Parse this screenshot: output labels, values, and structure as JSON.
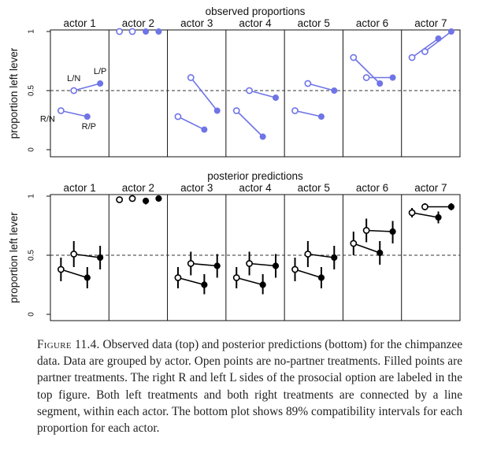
{
  "chart_data": [
    {
      "type": "scatter",
      "title": "observed proportions",
      "ylabel": "proportion left lever",
      "ylim": [
        0,
        1
      ],
      "yticks": [
        0,
        0.5,
        1
      ],
      "yticklabels": [
        "0",
        "0.5",
        "1"
      ],
      "reference_line": 0.5,
      "grid": false,
      "panels": [
        "actor 1",
        "actor 2",
        "actor 3",
        "actor 4",
        "actor 5",
        "actor 6",
        "actor 7"
      ],
      "treatments": [
        "R/N",
        "L/N",
        "R/P",
        "L/P"
      ],
      "series": [
        {
          "treatment": "R/N",
          "marker": "open",
          "values": [
            0.33,
            1.0,
            0.28,
            0.33,
            0.33,
            0.78,
            0.78
          ]
        },
        {
          "treatment": "L/N",
          "marker": "open",
          "values": [
            0.5,
            1.0,
            0.61,
            0.5,
            0.56,
            0.61,
            0.83
          ]
        },
        {
          "treatment": "R/P",
          "marker": "filled",
          "values": [
            0.28,
            1.0,
            0.17,
            0.11,
            0.28,
            0.56,
            0.94
          ]
        },
        {
          "treatment": "L/P",
          "marker": "filled",
          "values": [
            0.56,
            1.0,
            0.33,
            0.44,
            0.5,
            0.61,
            1.0
          ]
        }
      ],
      "annotations": [
        {
          "text": "R/N",
          "panel": "actor 1",
          "treatment": "R/N"
        },
        {
          "text": "L/N",
          "panel": "actor 1",
          "treatment": "L/N"
        },
        {
          "text": "R/P",
          "panel": "actor 1",
          "treatment": "R/P"
        },
        {
          "text": "L/P",
          "panel": "actor 1",
          "treatment": "L/P"
        }
      ],
      "color": "#6f74e6"
    },
    {
      "type": "scatter",
      "title": "posterior predictions",
      "ylabel": "proportion left lever",
      "ylim": [
        0,
        1
      ],
      "yticks": [
        0,
        0.5,
        1
      ],
      "yticklabels": [
        "0",
        "0.5",
        "1"
      ],
      "reference_line": 0.5,
      "grid": false,
      "panels": [
        "actor 1",
        "actor 2",
        "actor 3",
        "actor 4",
        "actor 5",
        "actor 6",
        "actor 7"
      ],
      "treatments": [
        "R/N",
        "L/N",
        "R/P",
        "L/P"
      ],
      "interval": "89%",
      "series": [
        {
          "treatment": "R/N",
          "marker": "open",
          "values": [
            0.38,
            0.97,
            0.31,
            0.31,
            0.38,
            0.6,
            0.86
          ],
          "lower": [
            0.28,
            0.95,
            0.22,
            0.22,
            0.28,
            0.5,
            0.82
          ],
          "upper": [
            0.48,
            0.99,
            0.4,
            0.4,
            0.48,
            0.7,
            0.9
          ]
        },
        {
          "treatment": "L/N",
          "marker": "open",
          "values": [
            0.51,
            0.98,
            0.43,
            0.43,
            0.51,
            0.71,
            0.91
          ],
          "lower": [
            0.4,
            0.97,
            0.33,
            0.33,
            0.4,
            0.61,
            0.88
          ],
          "upper": [
            0.62,
            0.99,
            0.53,
            0.53,
            0.62,
            0.81,
            0.94
          ]
        },
        {
          "treatment": "R/P",
          "marker": "filled",
          "values": [
            0.31,
            0.96,
            0.25,
            0.25,
            0.31,
            0.52,
            0.82
          ],
          "lower": [
            0.22,
            0.93,
            0.17,
            0.17,
            0.22,
            0.42,
            0.77
          ],
          "upper": [
            0.4,
            0.98,
            0.34,
            0.34,
            0.4,
            0.62,
            0.87
          ]
        },
        {
          "treatment": "L/P",
          "marker": "filled",
          "values": [
            0.48,
            0.98,
            0.41,
            0.41,
            0.48,
            0.7,
            0.91
          ],
          "lower": [
            0.38,
            0.97,
            0.31,
            0.31,
            0.38,
            0.6,
            0.88
          ],
          "upper": [
            0.58,
            0.99,
            0.51,
            0.51,
            0.58,
            0.79,
            0.94
          ]
        }
      ],
      "color": "#000000"
    }
  ],
  "caption": {
    "label": "Figure 11.4.",
    "text": "Observed data (top) and posterior predictions (bottom) for the chimpanzee data. Data are grouped by actor. Open points are no-partner treatments. Filled points are partner treatments. The right R and left L sides of the prosocial option are labeled in the top figure. Both left treatments and both right treatments are connected by a line segment, within each actor. The bottom plot shows 89% compatibility intervals for each proportion for each actor."
  }
}
